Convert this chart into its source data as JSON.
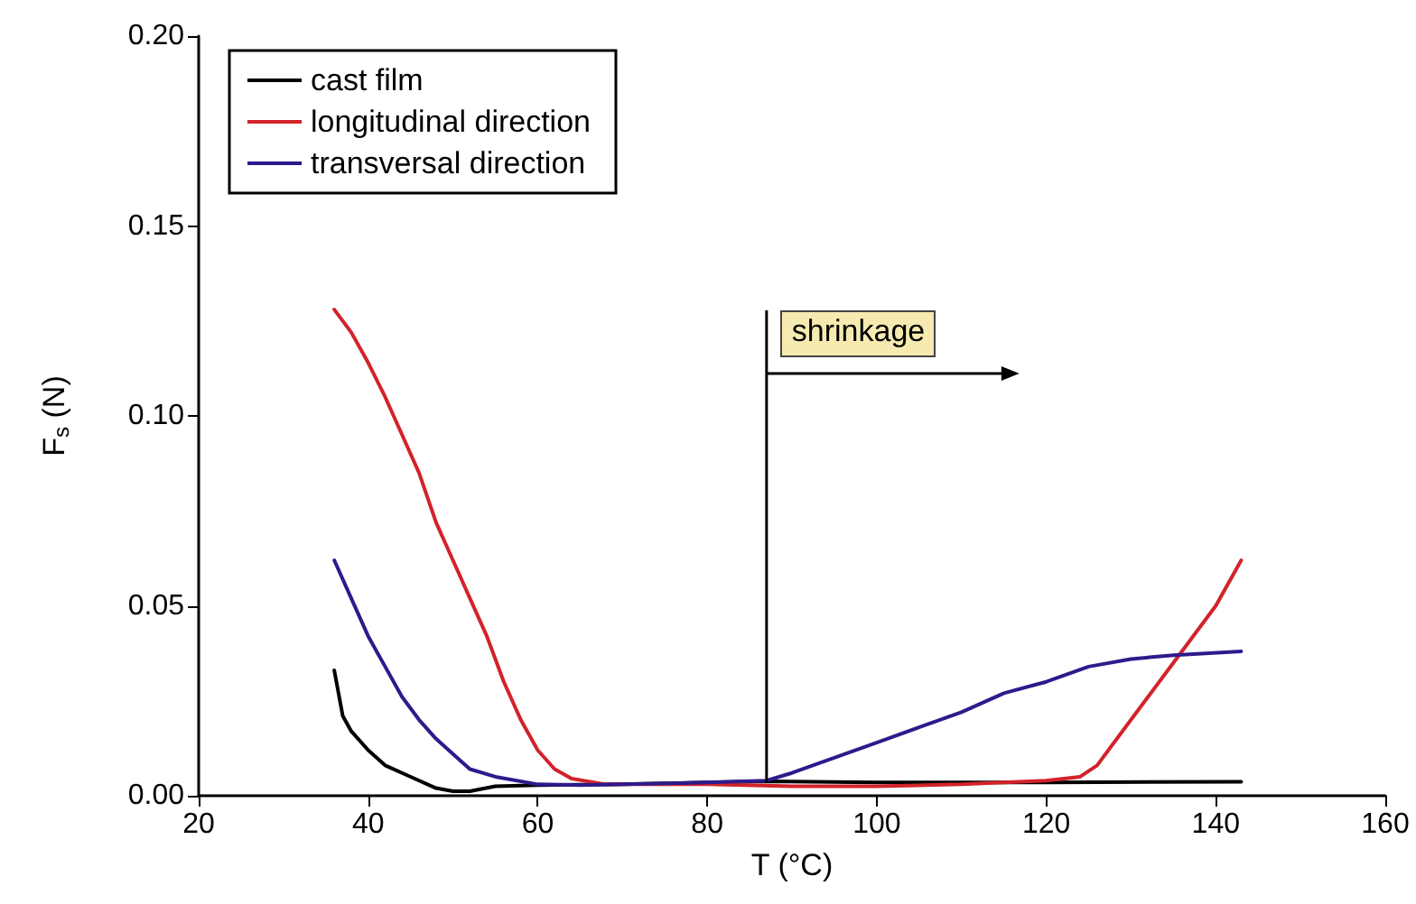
{
  "chart_data": {
    "type": "line",
    "xlabel": "T (°C)",
    "ylabel": "F$_{s}$ (N)",
    "xlim": [
      20,
      160
    ],
    "xticks": [
      20,
      40,
      60,
      80,
      100,
      120,
      140,
      160
    ],
    "ylim": [
      0,
      0.2
    ],
    "yticks": [
      {
        "value": 0,
        "label": "0.00"
      },
      {
        "value": 0.05,
        "label": "0.05"
      },
      {
        "value": 0.1,
        "label": "0.10"
      },
      {
        "value": 0.15,
        "label": "0.15"
      },
      {
        "value": 0.2,
        "label": "0.20"
      }
    ],
    "grid": false,
    "legend": "top left",
    "marker": "none",
    "line_style": "solid",
    "ref_lines": [
      {
        "axis": "x",
        "value": 87,
        "label": "shrinkage"
      }
    ],
    "series": [
      {
        "name": "cast film",
        "color": "#000000",
        "x": [
          36,
          37,
          38,
          40,
          42,
          45,
          48,
          50,
          52,
          55,
          60,
          70,
          80,
          87,
          100,
          120,
          143
        ],
        "values": [
          0.033,
          0.021,
          0.017,
          0.012,
          0.008,
          0.005,
          0.002,
          0.0012,
          0.0012,
          0.0025,
          0.0028,
          0.003,
          0.0035,
          0.0038,
          0.0035,
          0.0035,
          0.0037
        ]
      },
      {
        "name": "longitudinal direction",
        "color": "#d2232a",
        "x": [
          36,
          38,
          40,
          42,
          44,
          46,
          48,
          50,
          52,
          54,
          56,
          58,
          60,
          62,
          64,
          68,
          70,
          80,
          90,
          100,
          110,
          120,
          124,
          126,
          128,
          132,
          136,
          140,
          143
        ],
        "values": [
          0.128,
          0.122,
          0.114,
          0.105,
          0.095,
          0.085,
          0.072,
          0.062,
          0.052,
          0.042,
          0.03,
          0.02,
          0.012,
          0.007,
          0.0045,
          0.003,
          0.003,
          0.003,
          0.0025,
          0.0025,
          0.003,
          0.004,
          0.005,
          0.008,
          0.014,
          0.026,
          0.038,
          0.05,
          0.062
        ]
      },
      {
        "name": "transversal direction",
        "color": "#2e1a8c",
        "x": [
          36,
          38,
          40,
          42,
          44,
          46,
          48,
          50,
          52,
          55,
          60,
          65,
          70,
          80,
          87,
          90,
          95,
          100,
          105,
          110,
          115,
          120,
          125,
          130,
          135,
          143
        ],
        "values": [
          0.062,
          0.052,
          0.042,
          0.034,
          0.026,
          0.02,
          0.015,
          0.011,
          0.007,
          0.005,
          0.003,
          0.0028,
          0.003,
          0.0035,
          0.004,
          0.006,
          0.01,
          0.014,
          0.018,
          0.022,
          0.027,
          0.03,
          0.034,
          0.036,
          0.037,
          0.038
        ]
      }
    ]
  }
}
